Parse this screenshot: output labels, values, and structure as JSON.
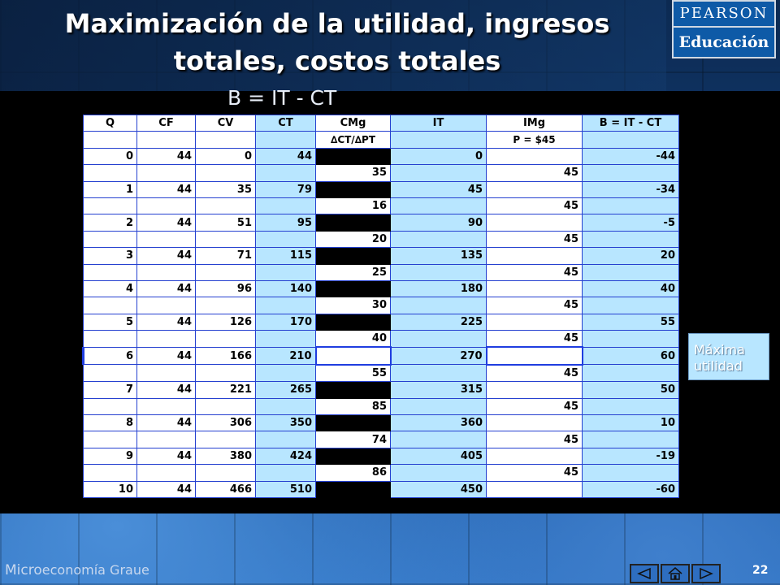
{
  "header": {
    "title_line1": "Maximización de la utilidad, ingresos",
    "title_line2": "totales, costos totales"
  },
  "logo": {
    "line1": "PEARSON",
    "line2": "Educación"
  },
  "formula": "B = IT - CT",
  "table": {
    "headers": [
      "Q",
      "CF",
      "CV",
      "CT",
      "CMg",
      "IT",
      "IMg",
      "B = IT - CT"
    ],
    "subheaders": {
      "cmg": "∆CT/∆PT",
      "img": "P = $45"
    },
    "rows": [
      {
        "q": "0",
        "cf": "44",
        "cv": "0",
        "ct": "44",
        "it": "0",
        "b": "-44"
      },
      {
        "q": "1",
        "cf": "44",
        "cv": "35",
        "ct": "79",
        "it": "45",
        "b": "-34"
      },
      {
        "q": "2",
        "cf": "44",
        "cv": "51",
        "ct": "95",
        "it": "90",
        "b": "-5"
      },
      {
        "q": "3",
        "cf": "44",
        "cv": "71",
        "ct": "115",
        "it": "135",
        "b": "20"
      },
      {
        "q": "4",
        "cf": "44",
        "cv": "96",
        "ct": "140",
        "it": "180",
        "b": "40"
      },
      {
        "q": "5",
        "cf": "44",
        "cv": "126",
        "ct": "170",
        "it": "225",
        "b": "55"
      },
      {
        "q": "6",
        "cf": "44",
        "cv": "166",
        "ct": "210",
        "it": "270",
        "b": "60"
      },
      {
        "q": "7",
        "cf": "44",
        "cv": "221",
        "ct": "265",
        "it": "315",
        "b": "50"
      },
      {
        "q": "8",
        "cf": "44",
        "cv": "306",
        "ct": "350",
        "it": "360",
        "b": "10"
      },
      {
        "q": "9",
        "cf": "44",
        "cv": "380",
        "ct": "424",
        "it": "405",
        "b": "-19"
      },
      {
        "q": "10",
        "cf": "44",
        "cv": "466",
        "ct": "510",
        "it": "450",
        "b": "-60"
      }
    ],
    "marginal": [
      {
        "cmg": "35",
        "img": "45"
      },
      {
        "cmg": "16",
        "img": "45"
      },
      {
        "cmg": "20",
        "img": "45"
      },
      {
        "cmg": "25",
        "img": "45"
      },
      {
        "cmg": "30",
        "img": "45"
      },
      {
        "cmg": "40",
        "img": "45"
      },
      {
        "cmg": "55",
        "img": "45"
      },
      {
        "cmg": "85",
        "img": "45"
      },
      {
        "cmg": "74",
        "img": "45"
      },
      {
        "cmg": "86",
        "img": "45"
      }
    ]
  },
  "note": {
    "line1": "Máxima",
    "line2": "utilidad"
  },
  "footer": {
    "brand_prefix": "Micro",
    "brand_rest": "economía Graue",
    "page_number": "22"
  },
  "nav": [
    "previous-icon",
    "home-icon",
    "next-icon"
  ],
  "colors": {
    "light_blue_cell": "#b8e6ff",
    "grid_border": "#2540d0",
    "navy_background": "#0c2a52"
  }
}
